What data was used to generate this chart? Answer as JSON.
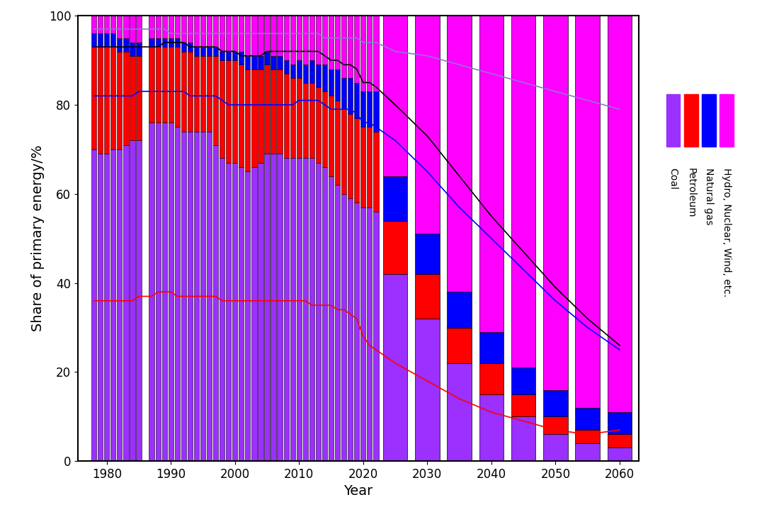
{
  "xlabel": "Year",
  "ylabel": "Share of primary energy/%",
  "colors": {
    "coal": "#9B30FF",
    "petroleum": "#FF0000",
    "natural_gas": "#0000FF",
    "hydro_nuclear_wind": "#FF00FF"
  },
  "line_colors": {
    "purple": "#9370DB",
    "black": "#000000",
    "blue": "#0000FF",
    "red": "#FF0000"
  },
  "legend_labels": [
    "Coal",
    "Petroleum",
    "Natural gas",
    "Hydro, Nuclear, Wind, etc."
  ],
  "historical_years": [
    1978,
    1979,
    1980,
    1981,
    1982,
    1983,
    1984,
    1985,
    1987,
    1988,
    1989,
    1990,
    1991,
    1992,
    1993,
    1994,
    1995,
    1996,
    1997,
    1998,
    1999,
    2000,
    2001,
    2002,
    2003,
    2004,
    2005,
    2006,
    2007,
    2008,
    2009,
    2010,
    2011,
    2012,
    2013,
    2014,
    2015,
    2016,
    2017,
    2018,
    2019,
    2020,
    2021,
    2022
  ],
  "historical_coal": [
    70,
    69,
    69,
    70,
    70,
    71,
    72,
    72,
    76,
    76,
    76,
    76,
    75,
    74,
    74,
    74,
    74,
    74,
    71,
    68,
    67,
    67,
    66,
    65,
    66,
    67,
    69,
    69,
    69,
    68,
    68,
    68,
    68,
    68,
    67,
    66,
    64,
    62,
    60,
    59,
    58,
    57,
    57,
    56
  ],
  "historical_petroleum": [
    23,
    24,
    24,
    23,
    22,
    21,
    19,
    19,
    17,
    17,
    17,
    17,
    18,
    18,
    18,
    17,
    17,
    17,
    20,
    22,
    23,
    23,
    23,
    23,
    22,
    21,
    20,
    19,
    19,
    19,
    18,
    18,
    17,
    17,
    17,
    17,
    18,
    19,
    19,
    19,
    19,
    18,
    18,
    18
  ],
  "historical_gas": [
    3,
    3,
    3,
    3,
    3,
    3,
    3,
    3,
    2,
    2,
    2,
    2,
    2,
    2,
    2,
    2,
    2,
    2,
    2,
    2,
    2,
    2,
    3,
    3,
    3,
    3,
    3,
    3,
    3,
    3,
    3,
    4,
    4,
    5,
    5,
    6,
    6,
    7,
    7,
    8,
    8,
    8,
    8,
    9
  ],
  "historical_hydro": [
    4,
    4,
    4,
    4,
    5,
    5,
    6,
    6,
    5,
    5,
    5,
    5,
    5,
    6,
    6,
    7,
    7,
    7,
    7,
    8,
    8,
    8,
    8,
    9,
    9,
    9,
    8,
    9,
    9,
    10,
    11,
    10,
    11,
    10,
    11,
    11,
    12,
    12,
    14,
    14,
    15,
    17,
    17,
    17
  ],
  "future_years": [
    2025,
    2030,
    2035,
    2040,
    2045,
    2050,
    2055,
    2060
  ],
  "future_coal": [
    42,
    32,
    22,
    15,
    10,
    6,
    4,
    3
  ],
  "future_petroleum": [
    12,
    10,
    8,
    7,
    5,
    4,
    3,
    3
  ],
  "future_gas": [
    10,
    9,
    8,
    7,
    6,
    6,
    5,
    5
  ],
  "future_hydro": [
    36,
    49,
    62,
    71,
    79,
    84,
    88,
    89
  ],
  "line_purple_x": [
    1978,
    1979,
    1980,
    1981,
    1982,
    1983,
    1984,
    1985,
    1987,
    1988,
    1989,
    1990,
    1991,
    1992,
    1993,
    1994,
    1995,
    1996,
    1997,
    1998,
    1999,
    2000,
    2001,
    2002,
    2003,
    2004,
    2005,
    2006,
    2007,
    2008,
    2009,
    2010,
    2011,
    2012,
    2013,
    2014,
    2015,
    2016,
    2017,
    2018,
    2019,
    2020,
    2021,
    2022,
    2025,
    2030,
    2035,
    2040,
    2045,
    2050,
    2055,
    2060
  ],
  "line_purple_y": [
    97,
    97,
    97,
    97,
    97,
    97,
    97,
    97,
    97,
    97,
    97,
    96,
    96,
    96,
    96,
    96,
    96,
    96,
    96,
    96,
    96,
    96,
    96,
    96,
    96,
    96,
    96,
    96,
    96,
    96,
    96,
    96,
    96,
    96,
    96,
    95,
    95,
    95,
    95,
    95,
    95,
    94,
    94,
    94,
    92,
    91,
    89,
    87,
    85,
    83,
    81,
    79
  ],
  "line_black_x": [
    1978,
    1979,
    1980,
    1981,
    1982,
    1983,
    1984,
    1985,
    1987,
    1988,
    1989,
    1990,
    1991,
    1992,
    1993,
    1994,
    1995,
    1996,
    1997,
    1998,
    1999,
    2000,
    2001,
    2002,
    2003,
    2004,
    2005,
    2006,
    2007,
    2008,
    2009,
    2010,
    2011,
    2012,
    2013,
    2014,
    2015,
    2016,
    2017,
    2018,
    2019,
    2020,
    2021,
    2022,
    2025,
    2030,
    2035,
    2040,
    2045,
    2050,
    2055,
    2060
  ],
  "line_black_y": [
    93,
    93,
    93,
    93,
    93,
    93,
    93,
    93,
    93,
    93,
    94,
    94,
    94,
    94,
    93,
    93,
    93,
    93,
    93,
    92,
    92,
    92,
    91,
    91,
    91,
    91,
    92,
    92,
    92,
    92,
    92,
    92,
    92,
    92,
    92,
    91,
    90,
    90,
    89,
    89,
    88,
    85,
    85,
    84,
    80,
    73,
    64,
    55,
    47,
    39,
    32,
    26
  ],
  "line_blue_x": [
    1978,
    1979,
    1980,
    1981,
    1982,
    1983,
    1984,
    1985,
    1987,
    1988,
    1989,
    1990,
    1991,
    1992,
    1993,
    1994,
    1995,
    1996,
    1997,
    1998,
    1999,
    2000,
    2001,
    2002,
    2003,
    2004,
    2005,
    2006,
    2007,
    2008,
    2009,
    2010,
    2011,
    2012,
    2013,
    2014,
    2015,
    2016,
    2017,
    2018,
    2019,
    2020,
    2021,
    2022,
    2025,
    2030,
    2035,
    2040,
    2045,
    2050,
    2055,
    2060
  ],
  "line_blue_y": [
    82,
    82,
    82,
    82,
    82,
    82,
    82,
    83,
    83,
    83,
    83,
    83,
    83,
    83,
    82,
    82,
    82,
    82,
    82,
    81,
    80,
    80,
    80,
    80,
    80,
    80,
    80,
    80,
    80,
    80,
    80,
    81,
    81,
    81,
    81,
    80,
    79,
    79,
    79,
    79,
    78,
    76,
    76,
    75,
    72,
    65,
    57,
    50,
    43,
    36,
    30,
    25
  ],
  "line_red_x": [
    1978,
    1979,
    1980,
    1981,
    1982,
    1983,
    1984,
    1985,
    1987,
    1988,
    1989,
    1990,
    1991,
    1992,
    1993,
    1994,
    1995,
    1996,
    1997,
    1998,
    1999,
    2000,
    2001,
    2002,
    2003,
    2004,
    2005,
    2006,
    2007,
    2008,
    2009,
    2010,
    2011,
    2012,
    2013,
    2014,
    2015,
    2016,
    2017,
    2018,
    2019,
    2020,
    2021,
    2022,
    2025,
    2030,
    2035,
    2040,
    2045,
    2050,
    2055,
    2060
  ],
  "line_red_y": [
    36,
    36,
    36,
    36,
    36,
    36,
    36,
    37,
    37,
    38,
    38,
    38,
    37,
    37,
    37,
    37,
    37,
    37,
    37,
    36,
    36,
    36,
    36,
    36,
    36,
    36,
    36,
    36,
    36,
    36,
    36,
    36,
    36,
    35,
    35,
    35,
    35,
    34,
    34,
    33,
    32,
    28,
    26,
    25,
    22,
    18,
    14,
    11,
    9,
    7,
    6,
    7
  ]
}
